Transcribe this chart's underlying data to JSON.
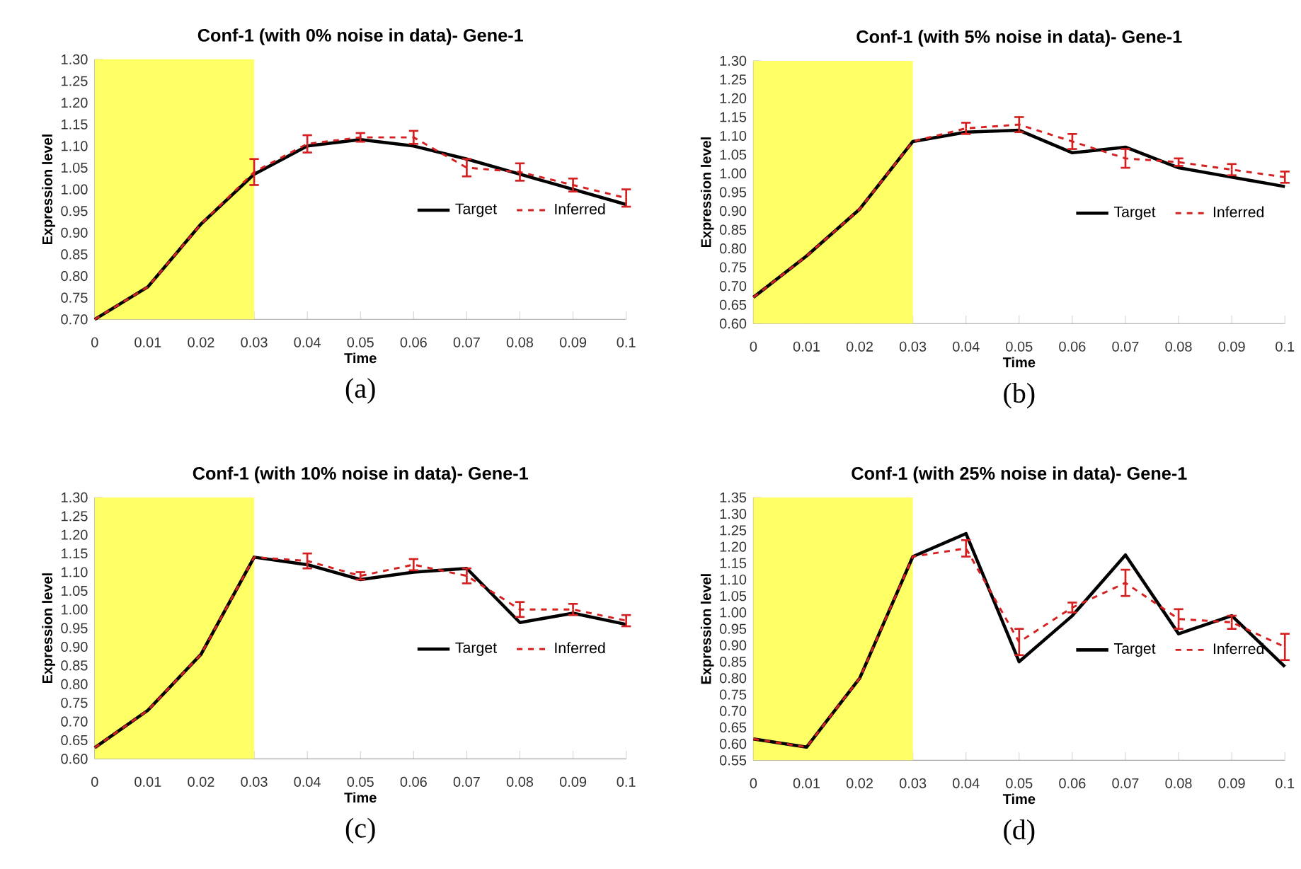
{
  "chart_data": [
    {
      "type": "line",
      "title": "Conf-1 (with 0% noise in data)- Gene-1",
      "xlabel": "Time",
      "ylabel": "Expression level",
      "annotations": [
        "(a)"
      ],
      "x": [
        0,
        0.01,
        0.02,
        0.03,
        0.04,
        0.05,
        0.06,
        0.07,
        0.08,
        0.09,
        0.1
      ],
      "series": [
        {
          "name": "Target",
          "color": "#000000",
          "line_style": "solid",
          "values": [
            0.7,
            0.775,
            0.92,
            1.035,
            1.1,
            1.115,
            1.1,
            1.07,
            1.035,
            1.0,
            0.965
          ]
        },
        {
          "name": "Inferred",
          "color": "#d42020",
          "line_style": "dashed",
          "values": [
            0.7,
            0.775,
            0.92,
            1.04,
            1.105,
            1.12,
            1.12,
            1.05,
            1.04,
            1.01,
            0.98
          ],
          "errors": [
            null,
            null,
            null,
            0.03,
            0.02,
            0.01,
            0.015,
            0.02,
            0.02,
            0.015,
            0.02
          ]
        }
      ],
      "bands": [
        {
          "axis": "x",
          "from": 0,
          "to": 0.03,
          "color": "#ffff66"
        }
      ],
      "xlim": [
        0,
        0.1
      ],
      "xticks": [
        0,
        0.01,
        0.02,
        0.03,
        0.04,
        0.05,
        0.06,
        0.07,
        0.08,
        0.09,
        0.1
      ],
      "ylim": [
        0.7,
        1.3
      ],
      "yticks": [
        {
          "value": 0.7,
          "label": "0.70"
        },
        {
          "value": 0.75,
          "label": "0.75"
        },
        {
          "value": 0.8,
          "label": "0.80"
        },
        {
          "value": 0.85,
          "label": "0.85"
        },
        {
          "value": 0.9,
          "label": "0.90"
        },
        {
          "value": 0.95,
          "label": "0.95"
        },
        {
          "value": 1.0,
          "label": "1.00"
        },
        {
          "value": 1.05,
          "label": "1.05"
        },
        {
          "value": 1.1,
          "label": "1.10"
        },
        {
          "value": 1.15,
          "label": "1.15"
        },
        {
          "value": 1.2,
          "label": "1.20"
        },
        {
          "value": 1.25,
          "label": "1.25"
        },
        {
          "value": 1.3,
          "label": "1.30"
        }
      ],
      "legend": "right"
    },
    {
      "type": "line",
      "title": "Conf-1 (with 5% noise in data)- Gene-1",
      "xlabel": "Time",
      "ylabel": "Expression level",
      "annotations": [
        "(b)"
      ],
      "x": [
        0,
        0.01,
        0.02,
        0.03,
        0.04,
        0.05,
        0.06,
        0.07,
        0.08,
        0.09,
        0.1
      ],
      "series": [
        {
          "name": "Target",
          "color": "#000000",
          "line_style": "solid",
          "values": [
            0.67,
            0.78,
            0.905,
            1.085,
            1.11,
            1.115,
            1.055,
            1.07,
            1.015,
            0.99,
            0.965
          ]
        },
        {
          "name": "Inferred",
          "color": "#d42020",
          "line_style": "dashed",
          "values": [
            0.67,
            0.78,
            0.905,
            1.085,
            1.12,
            1.13,
            1.085,
            1.04,
            1.03,
            1.01,
            0.99
          ],
          "errors": [
            null,
            null,
            null,
            null,
            0.015,
            0.02,
            0.02,
            0.025,
            0.01,
            0.015,
            0.015
          ]
        }
      ],
      "bands": [
        {
          "axis": "x",
          "from": 0,
          "to": 0.03,
          "color": "#ffff66"
        }
      ],
      "xlim": [
        0,
        0.1
      ],
      "xticks": [
        0,
        0.01,
        0.02,
        0.03,
        0.04,
        0.05,
        0.06,
        0.07,
        0.08,
        0.09,
        0.1
      ],
      "ylim": [
        0.6,
        1.3
      ],
      "yticks": [
        {
          "value": 0.6,
          "label": "0.60"
        },
        {
          "value": 0.65,
          "label": "0.65"
        },
        {
          "value": 0.7,
          "label": "0.70"
        },
        {
          "value": 0.75,
          "label": "0.75"
        },
        {
          "value": 0.8,
          "label": "0.80"
        },
        {
          "value": 0.85,
          "label": "0.85"
        },
        {
          "value": 0.9,
          "label": "0.90"
        },
        {
          "value": 0.95,
          "label": "0.95"
        },
        {
          "value": 1.0,
          "label": "1.00"
        },
        {
          "value": 1.05,
          "label": "1.05"
        },
        {
          "value": 1.1,
          "label": "1.10"
        },
        {
          "value": 1.15,
          "label": "1.15"
        },
        {
          "value": 1.2,
          "label": "1.20"
        },
        {
          "value": 1.25,
          "label": "1.25"
        },
        {
          "value": 1.3,
          "label": "1.30"
        }
      ],
      "legend": "right"
    },
    {
      "type": "line",
      "title": "Conf-1 (with 10% noise in data)- Gene-1",
      "xlabel": "Time",
      "ylabel": "Expression level",
      "annotations": [
        "(c)"
      ],
      "x": [
        0,
        0.01,
        0.02,
        0.03,
        0.04,
        0.05,
        0.06,
        0.07,
        0.08,
        0.09,
        0.1
      ],
      "series": [
        {
          "name": "Target",
          "color": "#000000",
          "line_style": "solid",
          "values": [
            0.63,
            0.73,
            0.88,
            1.14,
            1.12,
            1.08,
            1.1,
            1.11,
            0.965,
            0.99,
            0.96
          ]
        },
        {
          "name": "Inferred",
          "color": "#d42020",
          "line_style": "dashed",
          "values": [
            0.63,
            0.73,
            0.88,
            1.14,
            1.13,
            1.09,
            1.12,
            1.09,
            1.0,
            1.0,
            0.97
          ],
          "errors": [
            null,
            null,
            null,
            null,
            0.02,
            0.01,
            0.015,
            0.02,
            0.02,
            0.015,
            0.015
          ]
        }
      ],
      "bands": [
        {
          "axis": "x",
          "from": 0,
          "to": 0.03,
          "color": "#ffff66"
        }
      ],
      "xlim": [
        0,
        0.1
      ],
      "xticks": [
        0,
        0.01,
        0.02,
        0.03,
        0.04,
        0.05,
        0.06,
        0.07,
        0.08,
        0.09,
        0.1
      ],
      "ylim": [
        0.6,
        1.3
      ],
      "yticks": [
        {
          "value": 0.6,
          "label": "0.60"
        },
        {
          "value": 0.65,
          "label": "0.65"
        },
        {
          "value": 0.7,
          "label": "0.70"
        },
        {
          "value": 0.75,
          "label": "0.75"
        },
        {
          "value": 0.8,
          "label": "0.80"
        },
        {
          "value": 0.85,
          "label": "0.85"
        },
        {
          "value": 0.9,
          "label": "0.90"
        },
        {
          "value": 0.95,
          "label": "0.95"
        },
        {
          "value": 1.0,
          "label": "1.00"
        },
        {
          "value": 1.05,
          "label": "1.05"
        },
        {
          "value": 1.1,
          "label": "1.10"
        },
        {
          "value": 1.15,
          "label": "1.15"
        },
        {
          "value": 1.2,
          "label": "1.20"
        },
        {
          "value": 1.25,
          "label": "1.25"
        },
        {
          "value": 1.3,
          "label": "1.30"
        }
      ],
      "legend": "right"
    },
    {
      "type": "line",
      "title": "Conf-1 (with 25% noise in data)- Gene-1",
      "xlabel": "Time",
      "ylabel": "Expression level",
      "annotations": [
        "(d)"
      ],
      "x": [
        0,
        0.01,
        0.02,
        0.03,
        0.04,
        0.05,
        0.06,
        0.07,
        0.08,
        0.09,
        0.1
      ],
      "series": [
        {
          "name": "Target",
          "color": "#000000",
          "line_style": "solid",
          "values": [
            0.615,
            0.59,
            0.8,
            1.17,
            1.24,
            0.85,
            0.99,
            1.175,
            0.935,
            0.99,
            0.835
          ]
        },
        {
          "name": "Inferred",
          "color": "#d42020",
          "line_style": "dashed",
          "values": [
            0.615,
            0.59,
            0.8,
            1.17,
            1.195,
            0.91,
            1.015,
            1.09,
            0.98,
            0.97,
            0.895
          ],
          "errors": [
            null,
            null,
            null,
            null,
            0.025,
            0.04,
            0.015,
            0.04,
            0.03,
            0.02,
            0.04
          ]
        }
      ],
      "bands": [
        {
          "axis": "x",
          "from": 0,
          "to": 0.03,
          "color": "#ffff66"
        }
      ],
      "xlim": [
        0,
        0.1
      ],
      "xticks": [
        0,
        0.01,
        0.02,
        0.03,
        0.04,
        0.05,
        0.06,
        0.07,
        0.08,
        0.09,
        0.1
      ],
      "ylim": [
        0.55,
        1.35
      ],
      "yticks": [
        {
          "value": 0.55,
          "label": "0.55"
        },
        {
          "value": 0.6,
          "label": "0.60"
        },
        {
          "value": 0.65,
          "label": "0.65"
        },
        {
          "value": 0.7,
          "label": "0.70"
        },
        {
          "value": 0.75,
          "label": "0.75"
        },
        {
          "value": 0.8,
          "label": "0.80"
        },
        {
          "value": 0.85,
          "label": "0.85"
        },
        {
          "value": 0.9,
          "label": "0.90"
        },
        {
          "value": 0.95,
          "label": "0.95"
        },
        {
          "value": 1.0,
          "label": "1.00"
        },
        {
          "value": 1.05,
          "label": "1.05"
        },
        {
          "value": 1.1,
          "label": "1.10"
        },
        {
          "value": 1.15,
          "label": "1.15"
        },
        {
          "value": 1.2,
          "label": "1.20"
        },
        {
          "value": 1.25,
          "label": "1.25"
        },
        {
          "value": 1.3,
          "label": "1.30"
        },
        {
          "value": 1.35,
          "label": "1.35"
        }
      ],
      "legend": "right"
    }
  ]
}
